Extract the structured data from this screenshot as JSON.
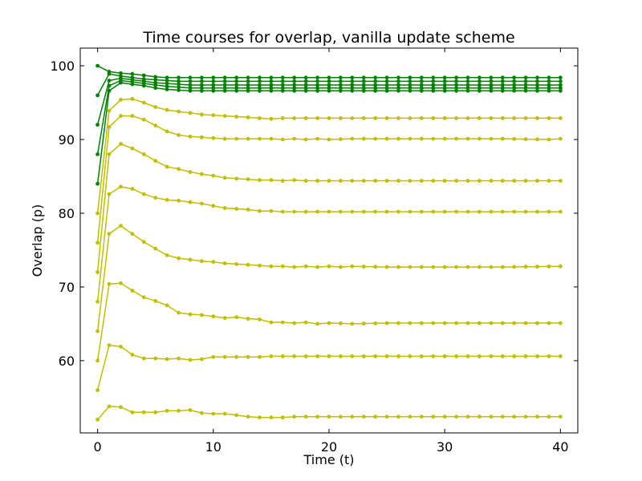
{
  "chart_data": {
    "type": "line",
    "title": "Time courses for overlap, vanilla update scheme",
    "xlabel": "Time (t)",
    "ylabel": "Overlap (p)",
    "xlim": [
      -1.5,
      41.5
    ],
    "ylim": [
      50.2,
      102.4
    ],
    "xticks": [
      0,
      10,
      20,
      30,
      40
    ],
    "yticks": [
      60,
      70,
      80,
      90,
      100
    ],
    "grid": false,
    "legend": "none",
    "colors": {
      "high": "#008000",
      "low": "#bfbf00",
      "axis": "#000000"
    },
    "series": [
      {
        "color_key": "high",
        "points": [
          [
            0,
            100
          ],
          [
            1,
            99.2
          ],
          [
            2,
            99
          ],
          [
            3,
            98.9
          ],
          [
            4,
            98.7
          ],
          [
            5,
            98.5
          ],
          [
            6,
            98.4
          ],
          [
            7,
            98.4
          ],
          [
            8,
            98.4
          ],
          [
            9,
            98.4
          ],
          [
            10,
            98.4
          ],
          [
            15,
            98.4
          ],
          [
            20,
            98.4
          ],
          [
            25,
            98.4
          ],
          [
            30,
            98.4
          ],
          [
            35,
            98.4
          ],
          [
            40,
            98.4
          ]
        ]
      },
      {
        "color_key": "high",
        "points": [
          [
            0,
            96
          ],
          [
            1,
            98.9
          ],
          [
            2,
            98.6
          ],
          [
            3,
            98.4
          ],
          [
            4,
            98.2
          ],
          [
            5,
            98.1
          ],
          [
            6,
            98
          ],
          [
            7,
            97.9
          ],
          [
            8,
            97.9
          ],
          [
            10,
            97.9
          ],
          [
            15,
            97.9
          ],
          [
            20,
            97.9
          ],
          [
            25,
            97.9
          ],
          [
            30,
            97.9
          ],
          [
            35,
            97.9
          ],
          [
            40,
            97.9
          ]
        ]
      },
      {
        "color_key": "high",
        "points": [
          [
            0,
            92
          ],
          [
            1,
            98
          ],
          [
            2,
            98.3
          ],
          [
            3,
            98.1
          ],
          [
            4,
            97.9
          ],
          [
            5,
            97.7
          ],
          [
            6,
            97.6
          ],
          [
            7,
            97.5
          ],
          [
            8,
            97.4
          ],
          [
            10,
            97.4
          ],
          [
            15,
            97.4
          ],
          [
            20,
            97.4
          ],
          [
            25,
            97.4
          ],
          [
            30,
            97.4
          ],
          [
            35,
            97.4
          ],
          [
            40,
            97.4
          ]
        ]
      },
      {
        "color_key": "high",
        "points": [
          [
            0,
            88
          ],
          [
            1,
            97.3
          ],
          [
            2,
            98
          ],
          [
            3,
            97.8
          ],
          [
            4,
            97.6
          ],
          [
            5,
            97.4
          ],
          [
            6,
            97.2
          ],
          [
            7,
            97.1
          ],
          [
            8,
            97
          ],
          [
            10,
            97
          ],
          [
            15,
            97
          ],
          [
            20,
            97
          ],
          [
            25,
            97
          ],
          [
            30,
            97
          ],
          [
            35,
            97
          ],
          [
            40,
            97
          ]
        ]
      },
      {
        "color_key": "high",
        "points": [
          [
            0,
            84
          ],
          [
            1,
            96.6
          ],
          [
            2,
            97.7
          ],
          [
            3,
            97.5
          ],
          [
            4,
            97.3
          ],
          [
            5,
            97
          ],
          [
            6,
            96.8
          ],
          [
            7,
            96.7
          ],
          [
            8,
            96.6
          ],
          [
            9,
            96.6
          ],
          [
            10,
            96.6
          ],
          [
            15,
            96.6
          ],
          [
            20,
            96.6
          ],
          [
            25,
            96.6
          ],
          [
            30,
            96.6
          ],
          [
            35,
            96.6
          ],
          [
            40,
            96.6
          ]
        ]
      },
      {
        "color_key": "low",
        "points": [
          [
            0,
            80
          ],
          [
            1,
            93.9
          ],
          [
            2,
            95.4
          ],
          [
            3,
            95.5
          ],
          [
            4,
            95
          ],
          [
            5,
            94.4
          ],
          [
            6,
            94
          ],
          [
            7,
            93.8
          ],
          [
            8,
            93.6
          ],
          [
            9,
            93.4
          ],
          [
            10,
            93.3
          ],
          [
            11,
            93.2
          ],
          [
            12,
            93.1
          ],
          [
            13,
            93
          ],
          [
            14,
            92.9
          ],
          [
            15,
            92.8
          ],
          [
            16,
            92.9
          ],
          [
            18,
            92.9
          ],
          [
            20,
            92.9
          ],
          [
            25,
            92.9
          ],
          [
            30,
            92.9
          ],
          [
            35,
            92.9
          ],
          [
            40,
            92.9
          ]
        ]
      },
      {
        "color_key": "low",
        "points": [
          [
            0,
            76
          ],
          [
            1,
            91.7
          ],
          [
            2,
            93.2
          ],
          [
            3,
            93.2
          ],
          [
            4,
            92.7
          ],
          [
            5,
            91.9
          ],
          [
            6,
            91.1
          ],
          [
            7,
            90.6
          ],
          [
            8,
            90.4
          ],
          [
            9,
            90.3
          ],
          [
            10,
            90.2
          ],
          [
            11,
            90.1
          ],
          [
            12,
            90.1
          ],
          [
            13,
            90.1
          ],
          [
            14,
            90.1
          ],
          [
            15,
            90.1
          ],
          [
            16,
            90
          ],
          [
            17,
            90.1
          ],
          [
            18,
            90
          ],
          [
            19,
            90.1
          ],
          [
            20,
            90
          ],
          [
            22,
            90.1
          ],
          [
            25,
            90.1
          ],
          [
            30,
            90.1
          ],
          [
            35,
            90.1
          ],
          [
            39,
            90
          ],
          [
            40,
            90.1
          ]
        ]
      },
      {
        "color_key": "low",
        "points": [
          [
            0,
            72
          ],
          [
            1,
            88
          ],
          [
            2,
            89.4
          ],
          [
            3,
            88.8
          ],
          [
            4,
            88
          ],
          [
            5,
            87.1
          ],
          [
            6,
            86.3
          ],
          [
            7,
            86
          ],
          [
            8,
            85.6
          ],
          [
            9,
            85.3
          ],
          [
            10,
            85.1
          ],
          [
            11,
            84.8
          ],
          [
            12,
            84.7
          ],
          [
            13,
            84.6
          ],
          [
            14,
            84.5
          ],
          [
            15,
            84.5
          ],
          [
            16,
            84.4
          ],
          [
            17,
            84.5
          ],
          [
            18,
            84.4
          ],
          [
            20,
            84.4
          ],
          [
            25,
            84.4
          ],
          [
            30,
            84.4
          ],
          [
            35,
            84.4
          ],
          [
            40,
            84.4
          ]
        ]
      },
      {
        "color_key": "low",
        "points": [
          [
            0,
            68
          ],
          [
            1,
            82.6
          ],
          [
            2,
            83.6
          ],
          [
            3,
            83.3
          ],
          [
            4,
            82.6
          ],
          [
            5,
            82.1
          ],
          [
            6,
            81.8
          ],
          [
            7,
            81.7
          ],
          [
            8,
            81.5
          ],
          [
            9,
            81.3
          ],
          [
            10,
            81
          ],
          [
            11,
            80.7
          ],
          [
            12,
            80.6
          ],
          [
            13,
            80.5
          ],
          [
            14,
            80.3
          ],
          [
            15,
            80.3
          ],
          [
            16,
            80.2
          ],
          [
            18,
            80.2
          ],
          [
            20,
            80.2
          ],
          [
            25,
            80.2
          ],
          [
            30,
            80.2
          ],
          [
            35,
            80.2
          ],
          [
            40,
            80.2
          ]
        ]
      },
      {
        "color_key": "low",
        "points": [
          [
            0,
            64
          ],
          [
            1,
            77.2
          ],
          [
            2,
            78.3
          ],
          [
            3,
            77.2
          ],
          [
            4,
            76.1
          ],
          [
            5,
            75.2
          ],
          [
            6,
            74.3
          ],
          [
            7,
            73.9
          ],
          [
            8,
            73.7
          ],
          [
            9,
            73.5
          ],
          [
            10,
            73.4
          ],
          [
            11,
            73.2
          ],
          [
            12,
            73.1
          ],
          [
            13,
            73
          ],
          [
            14,
            72.9
          ],
          [
            15,
            72.8
          ],
          [
            16,
            72.8
          ],
          [
            17,
            72.7
          ],
          [
            18,
            72.8
          ],
          [
            19,
            72.7
          ],
          [
            20,
            72.8
          ],
          [
            21,
            72.7
          ],
          [
            22,
            72.8
          ],
          [
            25,
            72.7
          ],
          [
            30,
            72.7
          ],
          [
            35,
            72.7
          ],
          [
            40,
            72.8
          ]
        ]
      },
      {
        "color_key": "low",
        "points": [
          [
            0,
            60
          ],
          [
            1,
            70.4
          ],
          [
            2,
            70.5
          ],
          [
            3,
            69.5
          ],
          [
            4,
            68.6
          ],
          [
            5,
            68.1
          ],
          [
            6,
            67.5
          ],
          [
            7,
            66.5
          ],
          [
            8,
            66.3
          ],
          [
            9,
            66.2
          ],
          [
            10,
            66
          ],
          [
            11,
            65.8
          ],
          [
            12,
            65.9
          ],
          [
            13,
            65.7
          ],
          [
            14,
            65.6
          ],
          [
            15,
            65.2
          ],
          [
            16,
            65.2
          ],
          [
            17,
            65.1
          ],
          [
            18,
            65.2
          ],
          [
            19,
            65
          ],
          [
            20,
            65.1
          ],
          [
            22,
            65
          ],
          [
            25,
            65.1
          ],
          [
            30,
            65.1
          ],
          [
            35,
            65.1
          ],
          [
            40,
            65.1
          ]
        ]
      },
      {
        "color_key": "low",
        "points": [
          [
            0,
            56
          ],
          [
            1,
            62.1
          ],
          [
            2,
            61.9
          ],
          [
            3,
            60.8
          ],
          [
            4,
            60.3
          ],
          [
            5,
            60.3
          ],
          [
            6,
            60.2
          ],
          [
            7,
            60.3
          ],
          [
            8,
            60.1
          ],
          [
            9,
            60.2
          ],
          [
            10,
            60.5
          ],
          [
            11,
            60.5
          ],
          [
            12,
            60.5
          ],
          [
            13,
            60.5
          ],
          [
            14,
            60.5
          ],
          [
            15,
            60.6
          ],
          [
            20,
            60.6
          ],
          [
            25,
            60.6
          ],
          [
            30,
            60.6
          ],
          [
            35,
            60.6
          ],
          [
            40,
            60.6
          ]
        ]
      },
      {
        "color_key": "low",
        "points": [
          [
            0,
            52
          ],
          [
            1,
            53.8
          ],
          [
            2,
            53.7
          ],
          [
            3,
            53
          ],
          [
            4,
            53
          ],
          [
            5,
            53
          ],
          [
            6,
            53.2
          ],
          [
            7,
            53.2
          ],
          [
            8,
            53.3
          ],
          [
            9,
            52.9
          ],
          [
            10,
            52.8
          ],
          [
            11,
            52.8
          ],
          [
            12,
            52.6
          ],
          [
            13,
            52.4
          ],
          [
            14,
            52.3
          ],
          [
            15,
            52.3
          ],
          [
            16,
            52.3
          ],
          [
            17,
            52.4
          ],
          [
            20,
            52.4
          ],
          [
            25,
            52.4
          ],
          [
            30,
            52.4
          ],
          [
            35,
            52.4
          ],
          [
            40,
            52.4
          ]
        ]
      }
    ]
  }
}
